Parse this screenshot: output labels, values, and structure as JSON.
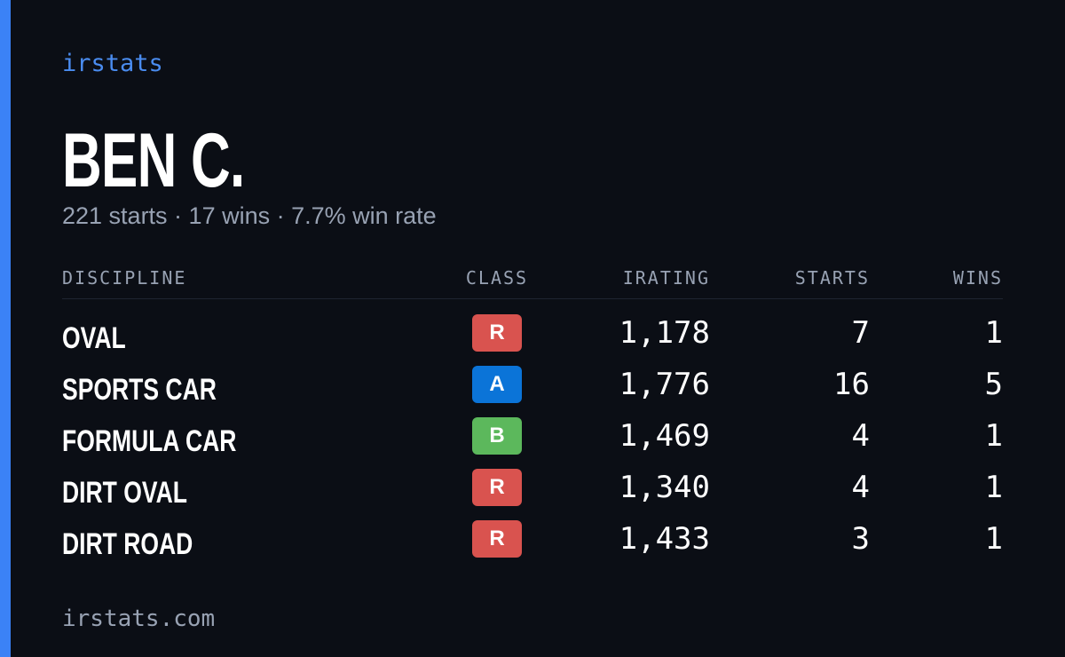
{
  "brand": "irstats",
  "title": "BEN C.",
  "subtitle": "221 starts · 17 wins · 7.7% win rate",
  "table": {
    "headers": [
      "DISCIPLINE",
      "CLASS",
      "IRATING",
      "STARTS",
      "WINS"
    ],
    "rows": [
      [
        "OVAL",
        "R",
        "1,178",
        "7",
        "1"
      ],
      [
        "SPORTS CAR",
        "A",
        "1,776",
        "16",
        "5"
      ],
      [
        "FORMULA CAR",
        "B",
        "1,469",
        "4",
        "1"
      ],
      [
        "DIRT OVAL",
        "R",
        "1,340",
        "4",
        "1"
      ],
      [
        "DIRT ROAD",
        "R",
        "1,433",
        "3",
        "1"
      ]
    ]
  },
  "class_colors": {
    "R": "#d9534f",
    "A": "#0b74d8",
    "B": "#5cb85c"
  },
  "footer": "irstats.com"
}
